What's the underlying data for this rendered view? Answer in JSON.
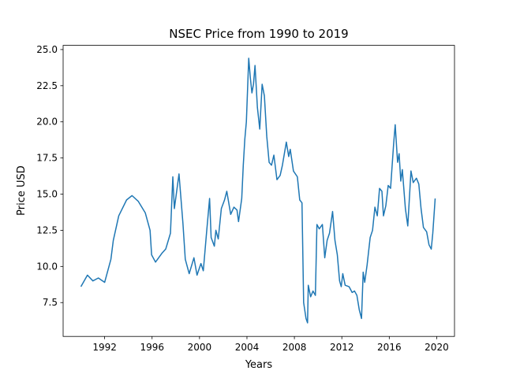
{
  "chart_data": {
    "type": "line",
    "title": "NSEC Price from 1990 to 2019",
    "x_label": "Years",
    "y_label": "Price USD",
    "x": [
      1990.0,
      1990.55,
      1991.01,
      1991.47,
      1992.0,
      1992.53,
      1992.73,
      1993.19,
      1993.85,
      1994.31,
      1994.84,
      1995.43,
      1995.83,
      1995.96,
      1996.29,
      1996.82,
      1997.15,
      1997.55,
      1997.75,
      1997.88,
      1998.27,
      1998.6,
      1998.8,
      1999.13,
      1999.53,
      1999.79,
      2000.12,
      2000.32,
      2000.59,
      2000.72,
      2000.85,
      2000.98,
      2001.25,
      2001.38,
      2001.58,
      2001.84,
      2002.11,
      2002.3,
      2002.63,
      2002.9,
      2003.16,
      2003.29,
      2003.56,
      2003.69,
      2003.82,
      2003.95,
      2004.15,
      2004.29,
      2004.42,
      2004.55,
      2004.68,
      2004.88,
      2005.08,
      2005.28,
      2005.47,
      2005.67,
      2005.87,
      2006.07,
      2006.27,
      2006.53,
      2006.8,
      2006.99,
      2007.32,
      2007.52,
      2007.65,
      2007.92,
      2008.25,
      2008.45,
      2008.64,
      2008.78,
      2008.98,
      2009.11,
      2009.17,
      2009.37,
      2009.57,
      2009.77,
      2009.9,
      2010.1,
      2010.36,
      2010.56,
      2010.76,
      2010.96,
      2011.22,
      2011.42,
      2011.62,
      2011.81,
      2011.95,
      2012.08,
      2012.28,
      2012.61,
      2012.87,
      2013.07,
      2013.27,
      2013.47,
      2013.66,
      2013.8,
      2013.93,
      2014.13,
      2014.39,
      2014.59,
      2014.79,
      2014.99,
      2015.18,
      2015.38,
      2015.51,
      2015.71,
      2015.91,
      2016.11,
      2016.37,
      2016.5,
      2016.7,
      2016.83,
      2016.97,
      2017.1,
      2017.36,
      2017.56,
      2017.83,
      2018.02,
      2018.29,
      2018.49,
      2018.68,
      2018.88,
      2019.15,
      2019.35,
      2019.54,
      2019.67,
      2019.87
    ],
    "series": [
      {
        "name": "NSEC",
        "color": "#1f77b4",
        "values": [
          8.6,
          9.4,
          9.0,
          9.2,
          8.9,
          10.5,
          11.8,
          13.5,
          14.6,
          14.9,
          14.5,
          13.7,
          12.5,
          10.8,
          10.3,
          10.9,
          11.2,
          12.3,
          16.2,
          14.0,
          16.4,
          13.0,
          10.5,
          9.5,
          10.6,
          9.4,
          10.2,
          9.7,
          12.3,
          13.5,
          14.7,
          12.0,
          11.4,
          12.5,
          11.9,
          14.0,
          14.6,
          15.2,
          13.6,
          14.1,
          13.9,
          13.1,
          14.7,
          17.0,
          18.8,
          20.0,
          24.4,
          23.0,
          22.0,
          22.6,
          23.9,
          21.0,
          19.5,
          22.6,
          21.8,
          19.0,
          17.2,
          17.0,
          17.7,
          16.0,
          16.3,
          17.0,
          18.6,
          17.6,
          18.1,
          16.6,
          16.2,
          14.6,
          14.4,
          7.5,
          6.4,
          6.1,
          8.7,
          7.9,
          8.3,
          8.0,
          12.9,
          12.6,
          12.9,
          10.6,
          11.8,
          12.3,
          13.8,
          11.8,
          10.8,
          9.0,
          8.6,
          9.5,
          8.7,
          8.6,
          8.2,
          8.3,
          8.0,
          7.0,
          6.4,
          9.6,
          8.9,
          10.1,
          12.0,
          12.5,
          14.1,
          13.5,
          15.4,
          15.2,
          13.5,
          14.2,
          15.6,
          15.4,
          18.5,
          19.8,
          17.2,
          17.8,
          15.9,
          16.7,
          14.0,
          12.8,
          16.6,
          15.8,
          16.1,
          15.7,
          14.0,
          12.7,
          12.4,
          11.5,
          11.2,
          12.3,
          14.7
        ]
      }
    ],
    "xlim": [
      1988.5,
      2021.5
    ],
    "xticks": [
      1992,
      1996,
      2000,
      2004,
      2008,
      2012,
      2016,
      2020
    ],
    "ylim": [
      5.16,
      25.29
    ],
    "yticks": [
      7.5,
      {
        "value": 10,
        "label": "10.0"
      },
      12.5,
      {
        "value": 15,
        "label": "15.0"
      },
      17.5,
      {
        "value": 20,
        "label": "20.0"
      },
      22.5,
      {
        "value": 25,
        "label": "25.0"
      }
    ]
  }
}
